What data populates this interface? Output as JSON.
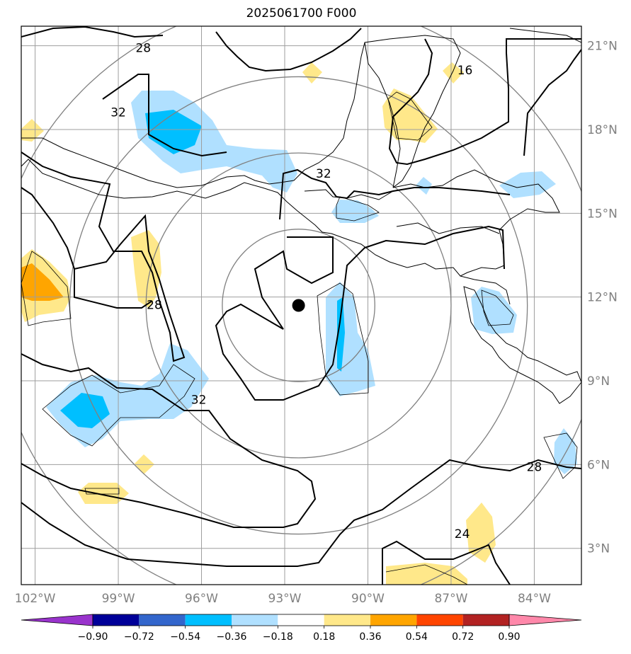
{
  "title": "2025061700 F000",
  "map": {
    "lon_range": [
      -102.5,
      -82.3
    ],
    "lat_range": [
      1.7,
      21.7
    ],
    "lon_ticks": [
      {
        "value": -102,
        "label": "102°W"
      },
      {
        "value": -99,
        "label": "99°W"
      },
      {
        "value": -96,
        "label": "96°W"
      },
      {
        "value": -93,
        "label": "93°W"
      },
      {
        "value": -90,
        "label": "90°W"
      },
      {
        "value": -87,
        "label": "87°W"
      },
      {
        "value": -84,
        "label": "84°W"
      }
    ],
    "lat_ticks": [
      {
        "value": 21,
        "label": "21°N"
      },
      {
        "value": 18,
        "label": "18°N"
      },
      {
        "value": 15,
        "label": "15°N"
      },
      {
        "value": 12,
        "label": "12°N"
      },
      {
        "value": 9,
        "label": "9°N"
      },
      {
        "value": 6,
        "label": "6°N"
      },
      {
        "value": 3,
        "label": "3°N"
      }
    ],
    "center": {
      "lon": -92.5,
      "lat": 11.7
    },
    "range_rings_deg": [
      2.75,
      5.5,
      8.25,
      11.0
    ],
    "contour_labels": [
      {
        "text": "28",
        "lon": -98.1,
        "lat": 20.9
      },
      {
        "text": "16",
        "lon": -86.5,
        "lat": 20.1
      },
      {
        "text": "32",
        "lon": -99.0,
        "lat": 18.6
      },
      {
        "text": "32",
        "lon": -91.6,
        "lat": 16.4
      },
      {
        "text": "28",
        "lon": -97.7,
        "lat": 11.7
      },
      {
        "text": "32",
        "lon": -96.1,
        "lat": 8.3
      },
      {
        "text": "28",
        "lon": -84.0,
        "lat": 5.9
      },
      {
        "text": "24",
        "lon": -86.6,
        "lat": 3.5
      }
    ],
    "grid": true
  },
  "colorbar": {
    "labels": [
      "−0.90",
      "−0.72",
      "−0.54",
      "−0.36",
      "−0.18",
      "0.18",
      "0.36",
      "0.54",
      "0.72",
      "0.90"
    ],
    "colors": [
      "#9933cc",
      "#000099",
      "#3366cc",
      "#00bfff",
      "#b0e0ff",
      "#ffffff",
      "#ffe88a",
      "#ffa500",
      "#ff4500",
      "#b22222",
      "#ff88aa"
    ],
    "under_color": "#9933cc",
    "over_color": "#ff88aa"
  }
}
